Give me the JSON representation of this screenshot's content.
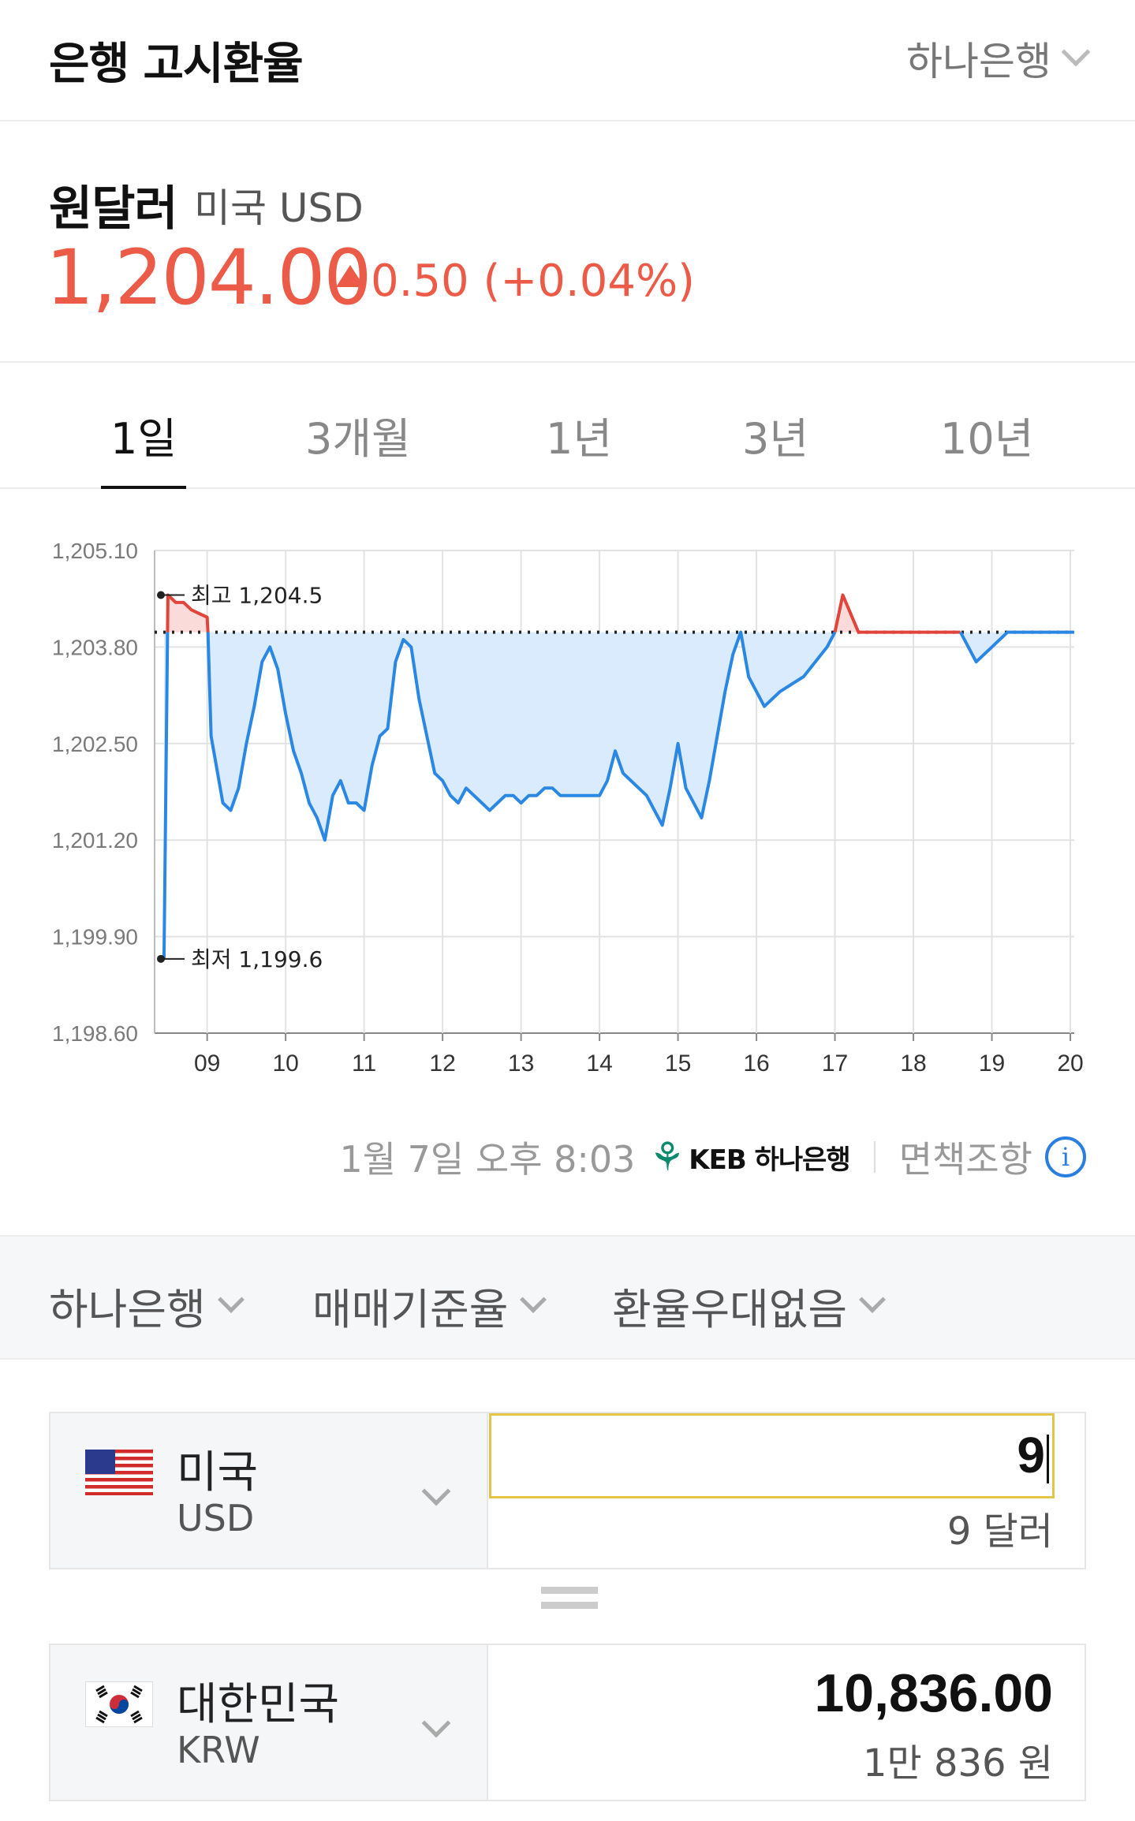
{
  "header": {
    "title": "은행 고시환율",
    "bank": "하나은행"
  },
  "summary": {
    "pair": "원달러",
    "pair_sub": "미국 USD",
    "rate": "1,204.00",
    "change": "0.50 (+0.04%)",
    "up_color": "#ec5b47"
  },
  "tabs": [
    "1일",
    "3개월",
    "1년",
    "3년",
    "10년"
  ],
  "active_tab": "1일",
  "chart_data": {
    "type": "line",
    "y_ticks": [
      "1,205.10",
      "1,203.80",
      "1,202.50",
      "1,201.20",
      "1,199.90",
      "1,198.60"
    ],
    "x_ticks": [
      "09",
      "10",
      "11",
      "12",
      "13",
      "14",
      "15",
      "16",
      "17",
      "18",
      "19",
      "20"
    ],
    "ylim": [
      1198.6,
      1205.1
    ],
    "baseline": 1204.0,
    "annotations": {
      "high": "최고 1,204.5",
      "low": "최저 1,199.6"
    },
    "colors": {
      "above": "#e0443a",
      "below": "#2a87e3",
      "above_fill": "#fbdada",
      "below_fill": "#d9ebfc"
    },
    "x": [
      8.45,
      8.5,
      8.6,
      8.7,
      8.8,
      9.0,
      9.01,
      9.05,
      9.1,
      9.15,
      9.2,
      9.3,
      9.4,
      9.5,
      9.6,
      9.7,
      9.8,
      9.9,
      10.0,
      10.1,
      10.2,
      10.3,
      10.4,
      10.5,
      10.6,
      10.7,
      10.8,
      10.9,
      11.0,
      11.1,
      11.2,
      11.3,
      11.4,
      11.5,
      11.6,
      11.7,
      11.8,
      11.9,
      12.0,
      12.1,
      12.2,
      12.3,
      12.4,
      12.5,
      12.6,
      12.7,
      12.8,
      12.9,
      13.0,
      13.1,
      13.2,
      13.3,
      13.4,
      13.5,
      13.6,
      13.7,
      13.8,
      13.9,
      14.0,
      14.1,
      14.2,
      14.3,
      14.4,
      14.5,
      14.6,
      14.7,
      14.8,
      14.9,
      15.0,
      15.1,
      15.2,
      15.3,
      15.4,
      15.5,
      15.6,
      15.7,
      15.8,
      15.9,
      16.1,
      16.3,
      16.6,
      16.9,
      17.0,
      17.1,
      17.3,
      17.6,
      17.9,
      18.2,
      18.5,
      18.6,
      18.8,
      19.0,
      19.2,
      19.4,
      19.6,
      19.8,
      20.05
    ],
    "y": [
      1199.6,
      1204.5,
      1204.4,
      1204.4,
      1204.3,
      1204.2,
      1204.0,
      1202.6,
      1202.3,
      1202.0,
      1201.7,
      1201.6,
      1201.9,
      1202.5,
      1203.0,
      1203.6,
      1203.8,
      1203.5,
      1202.9,
      1202.4,
      1202.1,
      1201.7,
      1201.5,
      1201.2,
      1201.8,
      1202.0,
      1201.7,
      1201.7,
      1201.6,
      1202.2,
      1202.6,
      1202.7,
      1203.6,
      1203.9,
      1203.8,
      1203.1,
      1202.6,
      1202.1,
      1202.0,
      1201.8,
      1201.7,
      1201.9,
      1201.8,
      1201.7,
      1201.6,
      1201.7,
      1201.8,
      1201.8,
      1201.7,
      1201.8,
      1201.8,
      1201.9,
      1201.9,
      1201.8,
      1201.8,
      1201.8,
      1201.8,
      1201.8,
      1201.8,
      1202.0,
      1202.4,
      1202.1,
      1202.0,
      1201.9,
      1201.8,
      1201.6,
      1201.4,
      1201.9,
      1202.5,
      1201.9,
      1201.7,
      1201.5,
      1202.0,
      1202.6,
      1203.2,
      1203.7,
      1204.0,
      1203.4,
      1203.0,
      1203.2,
      1203.4,
      1203.8,
      1204.0,
      1204.5,
      1204.0,
      1204.0,
      1204.0,
      1204.0,
      1204.0,
      1204.0,
      1203.6,
      1203.8,
      1204.0,
      1204.0,
      1204.0,
      1204.0,
      1204.0
    ]
  },
  "source": {
    "timestamp": "1월 7일 오후 8:03",
    "logo_text": "KEB 하나은행",
    "disclaimer": "면책조항",
    "info": "i"
  },
  "options": {
    "bank": "하나은행",
    "rate_type": "매매기준율",
    "discount": "환율우대없음"
  },
  "from": {
    "country": "미국",
    "code": "USD",
    "input_value": "9",
    "reading": "9 달러"
  },
  "to": {
    "country": "대한민국",
    "code": "KRW",
    "value": "10,836.00",
    "reading": "1만 836 원"
  }
}
